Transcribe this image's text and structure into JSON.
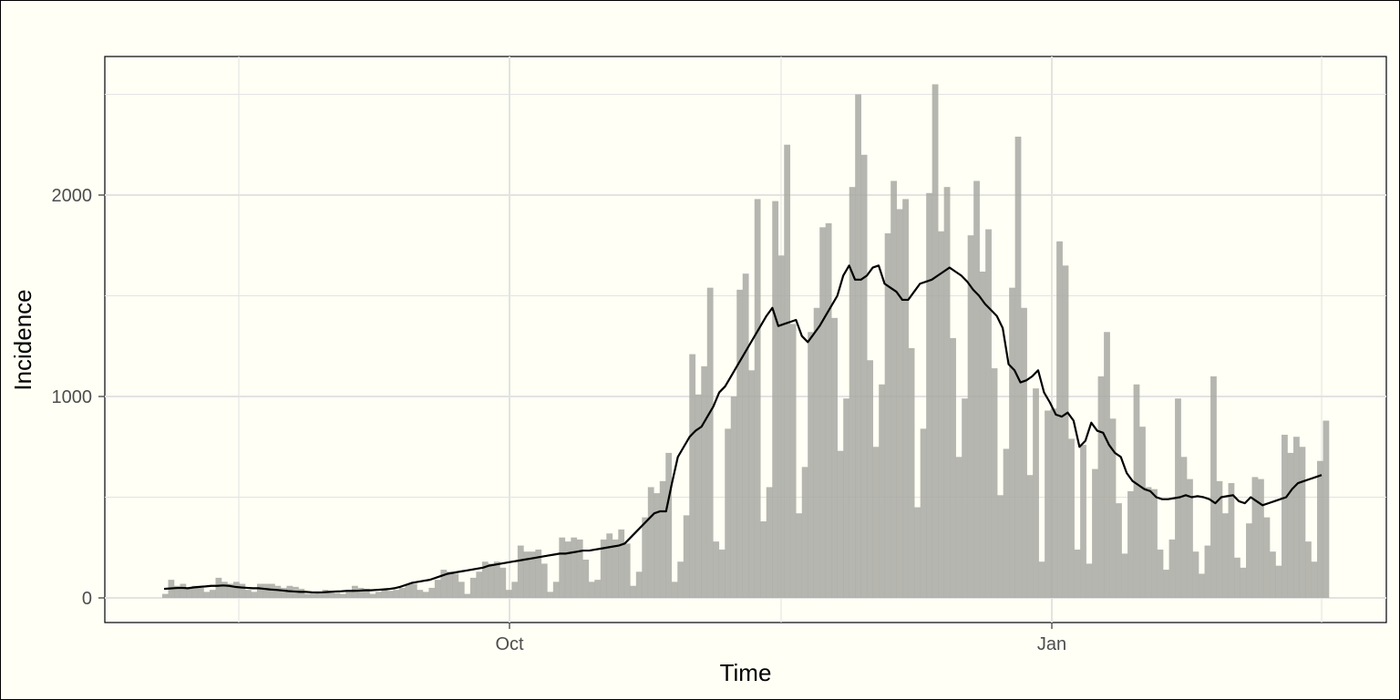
{
  "chart_data": {
    "type": "bar",
    "title": "",
    "xlabel": "Time",
    "ylabel": "Incidence",
    "ylim": [
      -120,
      2680
    ],
    "yticks": [
      0,
      1000,
      2000
    ],
    "xticks": [
      "Oct",
      "Jan"
    ],
    "grid": true,
    "colors": {
      "bars": "#a9a9a3",
      "line": "#000000",
      "background": "#fffff5",
      "grid": "#e3e3e3"
    },
    "series": [
      {
        "type": "bar",
        "values": [
          20,
          90,
          60,
          70,
          50,
          60,
          50,
          30,
          40,
          100,
          80,
          70,
          80,
          70,
          40,
          30,
          70,
          70,
          70,
          60,
          50,
          60,
          55,
          45,
          20,
          30,
          30,
          40,
          35,
          25,
          20,
          30,
          60,
          50,
          45,
          20,
          30,
          40,
          35,
          40,
          50,
          70,
          70,
          40,
          30,
          50,
          90,
          140,
          130,
          120,
          80,
          20,
          100,
          130,
          180,
          170,
          180,
          150,
          40,
          80,
          260,
          230,
          230,
          240,
          170,
          30,
          80,
          300,
          280,
          300,
          290,
          190,
          80,
          90,
          290,
          320,
          290,
          340,
          270,
          60,
          130,
          400,
          550,
          520,
          580,
          720,
          80,
          180,
          410,
          1210,
          1010,
          1150,
          1540,
          280,
          240,
          840,
          1000,
          1530,
          1610,
          1130,
          1980,
          380,
          550,
          1970,
          1700,
          2250,
          1360,
          420,
          650,
          1320,
          1440,
          1840,
          1860,
          1390,
          730,
          990,
          2040,
          2500,
          2200,
          1180,
          750,
          1060,
          1810,
          2070,
          1930,
          1980,
          1240,
          450,
          840,
          2010,
          2550,
          1820,
          2040,
          1290,
          700,
          990,
          1800,
          2070,
          1620,
          1830,
          1140,
          510,
          740,
          1540,
          2290,
          1440,
          610,
          1040,
          180,
          930,
          940,
          1770,
          1650,
          790,
          240,
          760,
          170,
          640,
          1100,
          1320,
          890,
          470,
          220,
          530,
          1060,
          850,
          550,
          540,
          240,
          140,
          290,
          990,
          700,
          590,
          230,
          120,
          260,
          1100,
          580,
          420,
          570,
          200,
          150,
          370,
          600,
          590,
          400,
          230,
          160,
          810,
          720,
          800,
          750,
          280,
          180,
          680,
          880
        ]
      },
      {
        "type": "line",
        "values": [
          45,
          47,
          49,
          50,
          48,
          52,
          55,
          57,
          60,
          60,
          62,
          60,
          55,
          52,
          50,
          48,
          48,
          45,
          42,
          40,
          37,
          34,
          32,
          30,
          30,
          28,
          27,
          28,
          30,
          32,
          33,
          35,
          35,
          36,
          38,
          38,
          40,
          42,
          44,
          48,
          55,
          65,
          75,
          80,
          85,
          90,
          100,
          110,
          120,
          125,
          130,
          135,
          140,
          145,
          150,
          160,
          165,
          170,
          175,
          180,
          185,
          190,
          195,
          200,
          205,
          210,
          215,
          220,
          220,
          225,
          230,
          235,
          235,
          240,
          245,
          250,
          255,
          260,
          270,
          300,
          330,
          360,
          390,
          420,
          430,
          430,
          570,
          700,
          750,
          800,
          830,
          850,
          900,
          950,
          1020,
          1050,
          1100,
          1150,
          1200,
          1250,
          1300,
          1350,
          1400,
          1440,
          1350,
          1360,
          1370,
          1380,
          1300,
          1270,
          1310,
          1350,
          1400,
          1450,
          1500,
          1600,
          1650,
          1580,
          1580,
          1600,
          1640,
          1650,
          1560,
          1540,
          1520,
          1480,
          1480,
          1520,
          1560,
          1570,
          1580,
          1600,
          1620,
          1640,
          1620,
          1600,
          1570,
          1530,
          1500,
          1460,
          1430,
          1400,
          1340,
          1160,
          1130,
          1070,
          1080,
          1100,
          1130,
          1020,
          970,
          910,
          900,
          920,
          880,
          750,
          780,
          870,
          830,
          820,
          760,
          720,
          700,
          620,
          580,
          560,
          540,
          530,
          500,
          490,
          490,
          495,
          500,
          510,
          500,
          505,
          500,
          490,
          470,
          500,
          505,
          510,
          480,
          470,
          500,
          480,
          460,
          470,
          480,
          490,
          500,
          540,
          570,
          580,
          590,
          600,
          610
        ]
      }
    ]
  }
}
